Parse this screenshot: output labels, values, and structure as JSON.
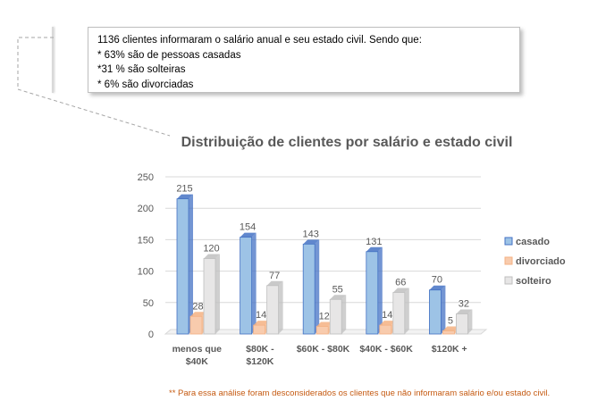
{
  "callout": {
    "lines": [
      "1136 clientes informaram o salário anual e seu estado civil. Sendo que:",
      "* 63% são de pessoas casadas",
      "*31 % são solteiras",
      "* 6% são divorciadas"
    ]
  },
  "footnote": "** Para essa análise foram desconsiderados os clientes que não informaram salário e/ou estado civil.",
  "chart_data": {
    "type": "bar",
    "title": "Distribuição de clientes por salário e estado civil",
    "xlabel": "",
    "ylabel": "",
    "categories": [
      "menos que $40K",
      "$80K - $120K",
      "$60K - $80K",
      "$40K - $60K",
      "$120K +"
    ],
    "category_lines": [
      [
        "menos que",
        "$40K"
      ],
      [
        "$80K -",
        "$120K"
      ],
      [
        "$60K - $80K"
      ],
      [
        "$40K - $60K"
      ],
      [
        "$120K +"
      ]
    ],
    "series": [
      {
        "name": "casado",
        "values": [
          215,
          154,
          143,
          131,
          70
        ],
        "color": "#4472c4",
        "light": "#9dc3e6"
      },
      {
        "name": "divorciado",
        "values": [
          28,
          14,
          12,
          14,
          5
        ],
        "color": "#f4b183",
        "light": "#f8cbad"
      },
      {
        "name": "solteiro",
        "values": [
          120,
          77,
          55,
          66,
          32
        ],
        "color": "#bfbfbf",
        "light": "#e7e6e6"
      }
    ],
    "ylim": [
      0,
      250
    ],
    "yticks": [
      0,
      50,
      100,
      150,
      200,
      250
    ],
    "grid": true,
    "legend": "right"
  }
}
